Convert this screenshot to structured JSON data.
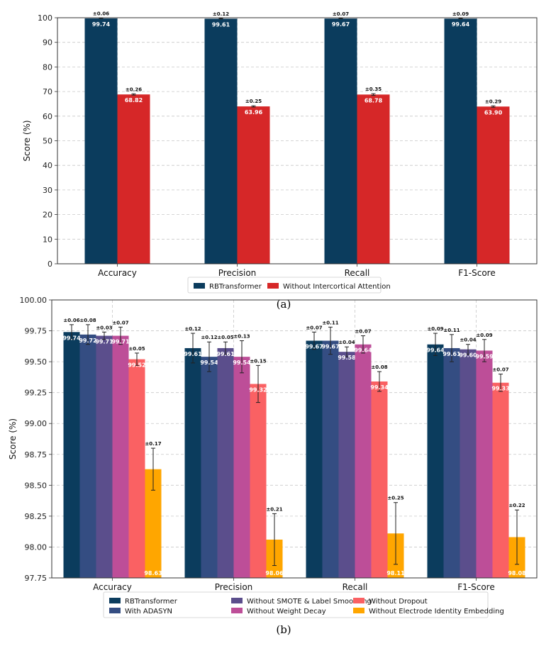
{
  "chart_data": [
    {
      "type": "bar",
      "caption": "(a)",
      "ylabel": "Score (%)",
      "ylim": [
        0,
        100
      ],
      "yticks": [
        "0",
        "10",
        "20",
        "30",
        "40",
        "50",
        "60",
        "70",
        "80",
        "90",
        "100"
      ],
      "categories": [
        "Accuracy",
        "Precision",
        "Recall",
        "F1-Score"
      ],
      "grid": true,
      "legend_position": "bottom",
      "series": [
        {
          "name": "RBTransformer",
          "color": "#0b3c5d",
          "values": [
            99.74,
            99.61,
            99.67,
            99.64
          ],
          "labels": [
            "99.74",
            "99.61",
            "99.67",
            "99.64"
          ],
          "errors": [
            0.06,
            0.12,
            0.07,
            0.09
          ],
          "error_labels": [
            "±0.06",
            "±0.12",
            "±0.07",
            "±0.09"
          ]
        },
        {
          "name": "Without Intercortical Attention",
          "color": "#d62728",
          "values": [
            68.82,
            63.96,
            68.78,
            63.9
          ],
          "labels": [
            "68.82",
            "63.96",
            "68.78",
            "63.90"
          ],
          "errors": [
            0.26,
            0.25,
            0.35,
            0.29
          ],
          "error_labels": [
            "±0.26",
            "±0.25",
            "±0.35",
            "±0.29"
          ]
        }
      ]
    },
    {
      "type": "bar",
      "caption": "(b)",
      "ylabel": "Score (%)",
      "ylim": [
        97.75,
        100.0
      ],
      "yticks": [
        "97.75",
        "98.00",
        "98.25",
        "98.50",
        "98.75",
        "99.00",
        "99.25",
        "99.50",
        "99.75",
        "100.00"
      ],
      "categories": [
        "Accuracy",
        "Precision",
        "Recall",
        "F1-Score"
      ],
      "grid": true,
      "legend_position": "bottom",
      "series": [
        {
          "name": "RBTransformer",
          "color": "#0b3c5d",
          "values": [
            99.74,
            99.61,
            99.67,
            99.64
          ],
          "labels": [
            "99.74",
            "99.61",
            "99.67",
            "99.64"
          ],
          "errors": [
            0.06,
            0.12,
            0.07,
            0.09
          ],
          "error_labels": [
            "±0.06",
            "±0.12",
            "±0.07",
            "±0.09"
          ]
        },
        {
          "name": "With ADASYN",
          "color": "#344d82",
          "values": [
            99.72,
            99.54,
            99.67,
            99.61
          ],
          "labels": [
            "99.72",
            "99.54",
            "99.67",
            "99.61"
          ],
          "errors": [
            0.08,
            0.12,
            0.11,
            0.11
          ],
          "error_labels": [
            "±0.08",
            "±0.12",
            "±0.11",
            "±0.11"
          ]
        },
        {
          "name": "Without SMOTE & Label Smoothing",
          "color": "#5b4e8c",
          "values": [
            99.71,
            99.61,
            99.58,
            99.6
          ],
          "labels": [
            "99.71",
            "99.61",
            "99.58",
            "99.60"
          ],
          "errors": [
            0.03,
            0.05,
            0.04,
            0.04
          ],
          "error_labels": [
            "±0.03",
            "±0.05",
            "±0.04",
            "±0.04"
          ]
        },
        {
          "name": "Without Weight Decay",
          "color": "#bd4e98",
          "values": [
            99.71,
            99.54,
            99.64,
            99.59
          ],
          "labels": [
            "99.71",
            "99.54",
            "99.64",
            "99.59"
          ],
          "errors": [
            0.07,
            0.13,
            0.07,
            0.09
          ],
          "error_labels": [
            "±0.07",
            "±0.13",
            "±0.07",
            "±0.09"
          ]
        },
        {
          "name": "Without Dropout",
          "color": "#fa6163",
          "values": [
            99.52,
            99.32,
            99.34,
            99.33
          ],
          "labels": [
            "99.52",
            "99.32",
            "99.34",
            "99.33"
          ],
          "errors": [
            0.05,
            0.15,
            0.08,
            0.07
          ],
          "error_labels": [
            "±0.05",
            "±0.15",
            "±0.08",
            "±0.07"
          ]
        },
        {
          "name": "Without Electrode Identity Embedding",
          "color": "#ffa600",
          "values": [
            98.63,
            98.06,
            98.11,
            98.08
          ],
          "labels": [
            "98.63",
            "98.06",
            "98.11",
            "98.08"
          ],
          "errors": [
            0.17,
            0.21,
            0.25,
            0.22
          ],
          "error_labels": [
            "±0.17",
            "±0.21",
            "±0.25",
            "±0.22"
          ]
        }
      ]
    }
  ]
}
